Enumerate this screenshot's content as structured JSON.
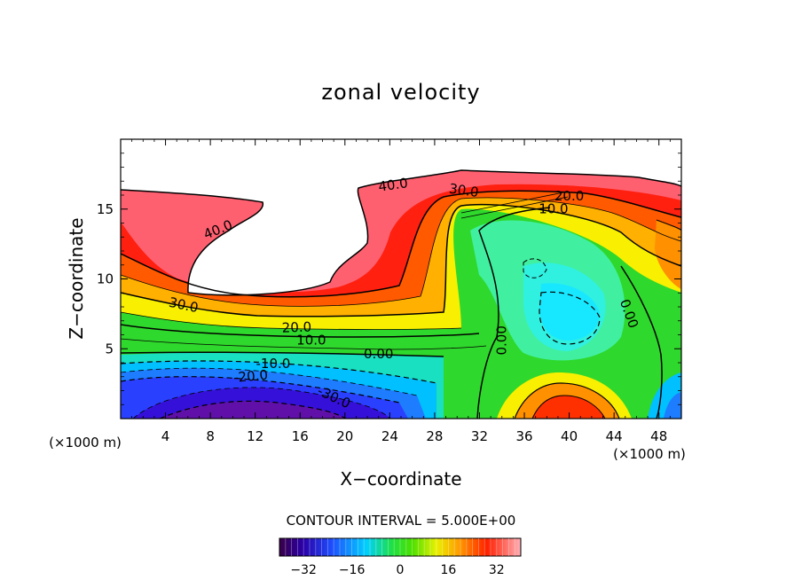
{
  "chart_data": {
    "type": "contour",
    "title": "zonal velocity",
    "xlabel": "X−coordinate",
    "ylabel": "Z−coordinate",
    "x_unit_left": "(×1000 m)",
    "x_unit_right": "(×1000 m)",
    "xlim": [
      0,
      50
    ],
    "ylim": [
      0,
      20
    ],
    "x_ticks": [
      4,
      8,
      12,
      16,
      20,
      24,
      28,
      32,
      36,
      40,
      44,
      48
    ],
    "y_ticks": [
      5,
      10,
      15
    ],
    "contour_interval_text": "CONTOUR INTERVAL = 5.000E+00",
    "contour_labels": [
      {
        "text": "40.0",
        "x": 24.3,
        "y": 16.7,
        "angle": -8
      },
      {
        "text": "30.0",
        "x": 30.6,
        "y": 16.3,
        "angle": 8
      },
      {
        "text": "20.0",
        "x": 40.0,
        "y": 15.9,
        "angle": 0
      },
      {
        "text": "10.0",
        "x": 38.6,
        "y": 15.0,
        "angle": 0
      },
      {
        "text": "40.0",
        "x": 8.7,
        "y": 13.5,
        "angle": -22
      },
      {
        "text": "30.0",
        "x": 5.6,
        "y": 8.1,
        "angle": 12
      },
      {
        "text": "20.0",
        "x": 15.7,
        "y": 6.5,
        "angle": -2
      },
      {
        "text": "10.0",
        "x": 17.0,
        "y": 5.6,
        "angle": 0
      },
      {
        "text": "0.00",
        "x": 23.0,
        "y": 4.6,
        "angle": 0
      },
      {
        "text": "0.00",
        "x": 34.0,
        "y": 5.6,
        "angle": -90
      },
      {
        "text": "0.00",
        "x": 45.3,
        "y": 7.5,
        "angle": 70
      },
      {
        "text": "-10.0",
        "x": 13.6,
        "y": 3.9,
        "angle": 0
      },
      {
        "text": "-20.0",
        "x": 11.6,
        "y": 3.0,
        "angle": -5
      },
      {
        "text": "-30.0",
        "x": 19.0,
        "y": 1.5,
        "angle": 25
      }
    ],
    "colorbar": {
      "min": -40,
      "max": 40,
      "ticks": [
        -32,
        -16,
        0,
        16,
        32
      ],
      "tick_labels": [
        "−32",
        "−16",
        "0",
        "16",
        "32"
      ]
    }
  }
}
